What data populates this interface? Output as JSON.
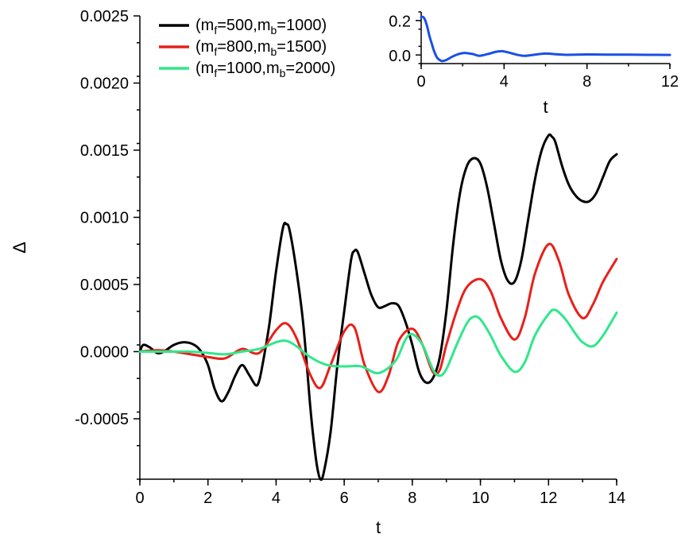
{
  "chart_data": [
    {
      "type": "line",
      "xlabel": "t",
      "ylabel": "Δ",
      "xlim": [
        0,
        14
      ],
      "ylim": [
        -0.00095,
        0.0025
      ],
      "xticks": [
        "0",
        "2",
        "4",
        "6",
        "8",
        "10",
        "12",
        "14"
      ],
      "xtick_values": [
        0,
        2,
        4,
        6,
        8,
        10,
        12,
        14
      ],
      "yticks": [
        "-0.0005",
        "0.0000",
        "0.0005",
        "0.0010",
        "0.0015",
        "0.0020",
        "0.0025"
      ],
      "ytick_values": [
        -0.0005,
        0,
        0.0005,
        0.001,
        0.0015,
        0.002,
        0.0025
      ],
      "grid": false,
      "legend_position": "top-left",
      "series": [
        {
          "legend": {
            "prefix": "(m",
            "sub1": "f",
            "mid": "=500,m",
            "sub2": "b",
            "suffix": "=1000)"
          },
          "color": "#000000",
          "x": [
            0,
            0.1,
            0.3,
            0.5,
            0.7,
            1.0,
            1.3,
            1.6,
            1.8,
            2.0,
            2.2,
            2.4,
            2.6,
            2.8,
            3.0,
            3.2,
            3.4,
            3.5,
            3.6,
            3.8,
            4.0,
            4.2,
            4.3,
            4.4,
            4.6,
            4.8,
            5.0,
            5.1,
            5.2,
            5.3,
            5.4,
            5.6,
            5.8,
            6.0,
            6.2,
            6.3,
            6.4,
            6.6,
            6.8,
            7.0,
            7.2,
            7.4,
            7.6,
            7.8,
            8.0,
            8.2,
            8.4,
            8.6,
            8.8,
            9.0,
            9.2,
            9.4,
            9.6,
            9.8,
            10.0,
            10.2,
            10.4,
            10.6,
            10.8,
            11.0,
            11.2,
            11.4,
            11.6,
            11.8,
            12.0,
            12.1,
            12.2,
            12.4,
            12.6,
            12.8,
            13.0,
            13.2,
            13.4,
            13.6,
            13.8,
            14.0
          ],
          "y": [
            0.0,
            5e-05,
            3e-05,
            -1e-05,
            0.0,
            5e-05,
            7e-05,
            5e-05,
            0.0,
            -0.0001,
            -0.00028,
            -0.00037,
            -0.0003,
            -0.00018,
            -0.0001,
            -0.00017,
            -0.00025,
            -0.00022,
            -0.0001,
            0.0002,
            0.0006,
            0.00092,
            0.00095,
            0.0009,
            0.0006,
            0.0002,
            -0.0004,
            -0.00065,
            -0.00085,
            -0.00095,
            -0.0009,
            -0.0006,
            -0.0001,
            0.0003,
            0.00068,
            0.00075,
            0.00074,
            0.00058,
            0.00042,
            0.00033,
            0.00034,
            0.00036,
            0.00034,
            0.00022,
            5e-05,
            -0.00015,
            -0.00023,
            -0.0002,
            -5e-05,
            0.0003,
            0.0008,
            0.00118,
            0.00138,
            0.00144,
            0.0014,
            0.00122,
            0.00095,
            0.00068,
            0.00053,
            0.00052,
            0.00068,
            0.00098,
            0.00128,
            0.0015,
            0.00161,
            0.0016,
            0.00156,
            0.00138,
            0.00124,
            0.00116,
            0.00112,
            0.00112,
            0.00118,
            0.0013,
            0.00142,
            0.00147
          ]
        },
        {
          "legend": {
            "prefix": "(m",
            "sub1": "f",
            "mid": "=800,m",
            "sub2": "b",
            "suffix": "=1500)"
          },
          "color": "#e8201a",
          "x": [
            0,
            0.5,
            1.0,
            1.5,
            2.0,
            2.5,
            3.0,
            3.5,
            4.0,
            4.3,
            4.6,
            5.0,
            5.3,
            5.6,
            6.0,
            6.3,
            6.6,
            7.0,
            7.3,
            7.6,
            8.0,
            8.3,
            8.6,
            8.8,
            9.0,
            9.3,
            9.6,
            10.0,
            10.3,
            10.6,
            11.0,
            11.3,
            11.6,
            12.0,
            12.3,
            12.6,
            13.0,
            13.3,
            13.6,
            14.0
          ],
          "y": [
            0.0,
            1e-05,
            0.0,
            -2e-05,
            -4e-05,
            -5e-05,
            2e-05,
            -1e-05,
            0.00016,
            0.00021,
            0.0001,
            -0.00017,
            -0.00027,
            -0.0001,
            0.00015,
            0.00018,
            -0.0001,
            -0.0003,
            -0.00018,
            8e-05,
            0.00017,
            5e-05,
            -0.00015,
            -0.00014,
            5e-05,
            0.0003,
            0.00048,
            0.00054,
            0.00045,
            0.00025,
            9e-05,
            0.00025,
            0.00058,
            0.0008,
            0.00068,
            0.00042,
            0.00025,
            0.00035,
            0.00052,
            0.00069
          ]
        },
        {
          "legend": {
            "prefix": "(m",
            "sub1": "f",
            "mid": "=1000,m",
            "sub2": "b",
            "suffix": "=2000)"
          },
          "color": "#2ee88a",
          "x": [
            0,
            0.5,
            1.0,
            1.5,
            2.0,
            2.5,
            3.0,
            3.5,
            4.0,
            4.3,
            4.6,
            5.0,
            5.5,
            6.0,
            6.5,
            7.0,
            7.5,
            7.8,
            8.0,
            8.3,
            8.6,
            8.8,
            9.0,
            9.3,
            9.6,
            9.8,
            10.0,
            10.3,
            10.6,
            11.0,
            11.3,
            11.6,
            12.0,
            12.2,
            12.5,
            12.8,
            13.0,
            13.3,
            13.6,
            14.0
          ],
          "y": [
            0.0,
            0.0,
            0.0,
            0.0,
            -1e-05,
            -2e-05,
            0.0,
            2e-05,
            7e-05,
            8e-05,
            4e-05,
            -4e-05,
            -0.0001,
            -0.00011,
            -0.00011,
            -0.00016,
            -7e-05,
            9e-05,
            0.00013,
            5e-05,
            -0.00013,
            -0.00018,
            -0.00013,
            5e-05,
            0.00021,
            0.00026,
            0.00024,
            0.00012,
            -3e-05,
            -0.00015,
            -8e-05,
            0.00012,
            0.00028,
            0.00031,
            0.00024,
            0.00013,
            7e-05,
            4e-05,
            0.00012,
            0.00029
          ]
        }
      ]
    },
    {
      "type": "line",
      "xlabel": "t",
      "ylabel": "",
      "xlim": [
        0,
        12
      ],
      "ylim": [
        -0.05,
        0.25
      ],
      "xticks": [
        "0",
        "4",
        "8",
        "12"
      ],
      "xtick_values": [
        0,
        4,
        8,
        12
      ],
      "yticks": [
        "0.0",
        "0.2"
      ],
      "ytick_values": [
        0.0,
        0.2
      ],
      "grid": false,
      "position": "inset top-right",
      "series": [
        {
          "color": "#1a4fe6",
          "x": [
            0,
            0.1,
            0.2,
            0.3,
            0.4,
            0.5,
            0.6,
            0.7,
            0.8,
            1.0,
            1.2,
            1.5,
            1.8,
            2.1,
            2.5,
            2.8,
            3.2,
            3.6,
            3.9,
            4.2,
            4.6,
            5.0,
            5.5,
            6.0,
            6.5,
            7.0,
            8.0,
            9.0,
            10.0,
            11.0,
            12.0
          ],
          "y": [
            0.22,
            0.22,
            0.2,
            0.16,
            0.11,
            0.07,
            0.03,
            0.0,
            -0.02,
            -0.035,
            -0.03,
            -0.01,
            0.005,
            0.012,
            0.005,
            -0.005,
            0.005,
            0.018,
            0.022,
            0.015,
            0.002,
            -0.005,
            0.002,
            0.008,
            0.004,
            0.001,
            0.003,
            0.002,
            0.002,
            0.001,
            0.0
          ]
        }
      ]
    }
  ]
}
